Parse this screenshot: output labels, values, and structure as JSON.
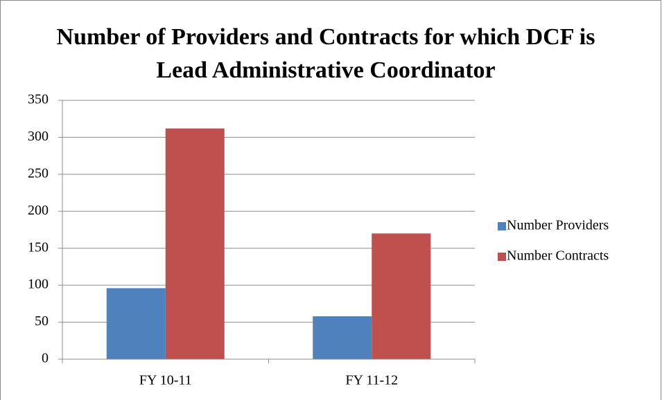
{
  "chart_data": {
    "type": "bar",
    "title": "Number of Providers and Contracts for which DCF is Lead Administrative Coordinator",
    "categories": [
      "FY 10-11",
      "FY 11-12"
    ],
    "series": [
      {
        "name": "Number Providers",
        "color": "#4f81bd",
        "values": [
          96,
          58
        ]
      },
      {
        "name": "Number Contracts",
        "color": "#c0504d",
        "values": [
          312,
          170
        ]
      }
    ],
    "ylim": [
      0,
      350
    ],
    "yticks": [
      0,
      50,
      100,
      150,
      200,
      250,
      300,
      350
    ],
    "grid": true,
    "legend": "right"
  }
}
